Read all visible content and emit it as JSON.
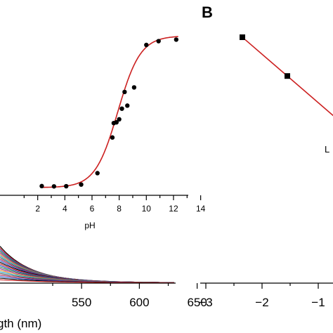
{
  "chart_data": [
    {
      "type": "scatter",
      "panel": "A",
      "xlabel": "pH",
      "ylabel": "",
      "xlim": [
        0,
        14
      ],
      "x_ticks": [
        2,
        4,
        6,
        8,
        10,
        12,
        14
      ],
      "points": [
        {
          "x": 2.3,
          "y": 0.01
        },
        {
          "x": 3.2,
          "y": 0.008
        },
        {
          "x": 4.1,
          "y": 0.009
        },
        {
          "x": 5.2,
          "y": 0.02
        },
        {
          "x": 6.4,
          "y": 0.095
        },
        {
          "x": 7.5,
          "y": 0.33
        },
        {
          "x": 7.6,
          "y": 0.425
        },
        {
          "x": 7.8,
          "y": 0.43
        },
        {
          "x": 8.0,
          "y": 0.45
        },
        {
          "x": 8.2,
          "y": 0.52
        },
        {
          "x": 8.4,
          "y": 0.63
        },
        {
          "x": 8.6,
          "y": 0.54
        },
        {
          "x": 9.1,
          "y": 0.66
        },
        {
          "x": 10.0,
          "y": 0.94
        },
        {
          "x": 10.9,
          "y": 0.965
        },
        {
          "x": 12.2,
          "y": 0.975
        }
      ],
      "fit": {
        "type": "sigmoid",
        "low": 0.0,
        "high": 1.0,
        "midpoint": 7.9,
        "slope": 1.2
      },
      "colors": {
        "points": "#000000",
        "fit": "#cc2020"
      }
    },
    {
      "type": "line",
      "panel": "spectra",
      "xlabel": "gth (nm)",
      "x_ticks": [
        550,
        600,
        650
      ],
      "xlim": [
        500,
        650
      ],
      "colors": [
        "#000000",
        "#cc2020",
        "#1f3fbf",
        "#2a8a3a",
        "#8b1a8b",
        "#e08020",
        "#20a0c0",
        "#555555",
        "#b02050",
        "#3060d0"
      ]
    },
    {
      "type": "line",
      "panel": "B",
      "title": "B",
      "xlabel": "L",
      "xlim": [
        -3,
        -0.5
      ],
      "x_ticks": [
        -3,
        -2,
        -1
      ],
      "x_tick_labels": [
        "−3",
        "−2",
        "−1"
      ],
      "points": [
        {
          "x": -2.35,
          "y": 0.9
        },
        {
          "x": -1.55,
          "y": 0.66
        }
      ],
      "fit": {
        "slope": -0.3,
        "intercept": 0.195
      },
      "colors": {
        "points": "#000000",
        "fit": "#cc2020"
      }
    }
  ]
}
